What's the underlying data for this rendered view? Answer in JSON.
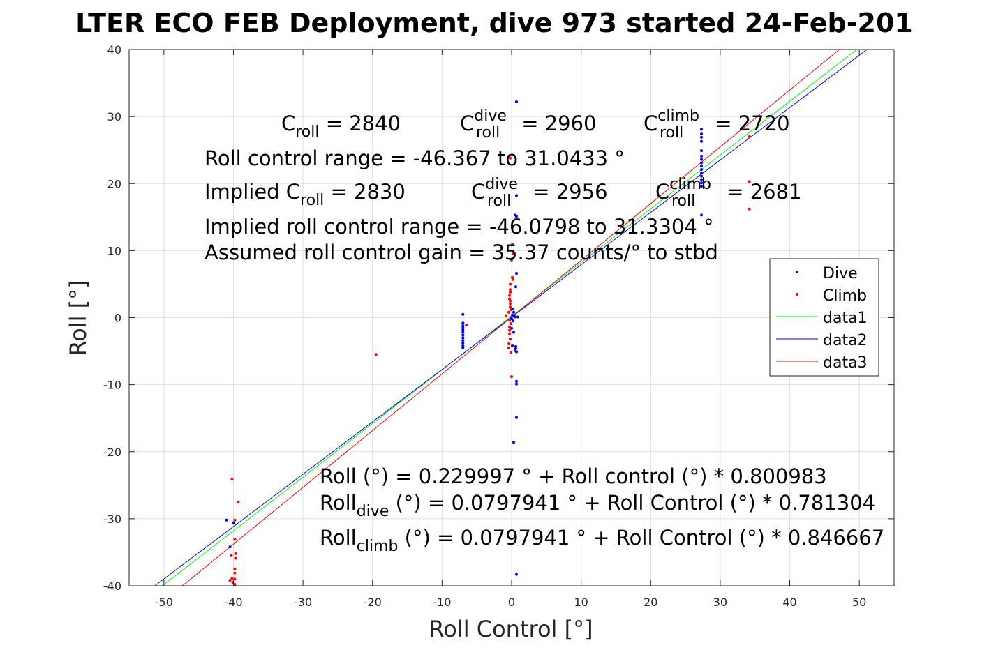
{
  "chart_data": {
    "type": "scatter",
    "title": "LTER ECO FEB Deployment, dive 973 started 24-Feb-201",
    "xlabel": "Roll Control [°]",
    "ylabel": "Roll [°]",
    "xlim": [
      -55,
      55
    ],
    "ylim": [
      -40,
      40
    ],
    "xticks": [
      -50,
      -40,
      -30,
      -20,
      -10,
      0,
      10,
      20,
      30,
      40,
      50
    ],
    "yticks": [
      -40,
      -30,
      -20,
      -10,
      0,
      10,
      20,
      30,
      40
    ],
    "grid": true,
    "legend_position": "right",
    "series": [
      {
        "name": "Dive",
        "kind": "points",
        "color": "#0000ff",
        "points": [
          [
            0.7,
            32.2
          ],
          [
            0.7,
            18.2
          ],
          [
            0.5,
            15.3
          ],
          [
            0.7,
            15.1
          ],
          [
            0.7,
            6.6
          ],
          [
            0.6,
            4.6
          ],
          [
            0.2,
            1.3
          ],
          [
            0.3,
            0.8
          ],
          [
            0.1,
            0.4
          ],
          [
            0.4,
            0.2
          ],
          [
            0.0,
            -0.2
          ],
          [
            0.2,
            -0.5
          ],
          [
            -0.1,
            0.0
          ],
          [
            0.5,
            0.1
          ],
          [
            0.9,
            0.1
          ],
          [
            0.0,
            -1.6
          ],
          [
            0.3,
            -2.2
          ],
          [
            0.1,
            -4.2
          ],
          [
            0.6,
            -4.3
          ],
          [
            0.6,
            -4.6
          ],
          [
            0.5,
            -4.9
          ],
          [
            0.7,
            -5.1
          ],
          [
            0.7,
            -9.5
          ],
          [
            0.7,
            -9.9
          ],
          [
            0.7,
            -14.9
          ],
          [
            0.3,
            -18.6
          ],
          [
            0.7,
            -38.3
          ],
          [
            -7.0,
            0.5
          ],
          [
            -7.0,
            -0.8
          ],
          [
            -7.0,
            -1.2
          ],
          [
            -7.0,
            -1.5
          ],
          [
            -7.0,
            -1.8
          ],
          [
            -7.0,
            -2.2
          ],
          [
            -7.0,
            -2.6
          ],
          [
            -7.0,
            -3.0
          ],
          [
            -7.0,
            -3.4
          ],
          [
            -7.0,
            -3.8
          ],
          [
            -7.0,
            -4.2
          ],
          [
            -7.0,
            -4.5
          ],
          [
            27.3,
            28.1
          ],
          [
            27.3,
            27.4
          ],
          [
            27.3,
            26.9
          ],
          [
            27.3,
            26.3
          ],
          [
            27.3,
            24.9
          ],
          [
            27.3,
            24.1
          ],
          [
            27.3,
            23.6
          ],
          [
            27.3,
            23.1
          ],
          [
            27.3,
            22.6
          ],
          [
            27.3,
            22.1
          ],
          [
            27.3,
            21.6
          ],
          [
            27.3,
            21.1
          ],
          [
            27.3,
            20.6
          ],
          [
            27.3,
            20.1
          ],
          [
            27.3,
            19.6
          ],
          [
            27.3,
            15.3
          ],
          [
            -41.0,
            -30.2
          ],
          [
            -40.5,
            -34.2
          ],
          [
            -40.0,
            -30.6
          ]
        ]
      },
      {
        "name": "Climb",
        "kind": "points",
        "color": "#ff0000",
        "points": [
          [
            -0.2,
            23.8
          ],
          [
            0.1,
            10.9
          ],
          [
            0.2,
            9.5
          ],
          [
            0.0,
            8.6
          ],
          [
            0.1,
            6.0
          ],
          [
            0.2,
            5.7
          ],
          [
            -0.2,
            5.0
          ],
          [
            -0.2,
            4.2
          ],
          [
            -0.2,
            3.8
          ],
          [
            -0.3,
            3.3
          ],
          [
            -0.3,
            2.8
          ],
          [
            -0.2,
            2.5
          ],
          [
            -0.2,
            2.1
          ],
          [
            -0.2,
            1.6
          ],
          [
            -0.1,
            1.2
          ],
          [
            -0.4,
            0.8
          ],
          [
            -0.8,
            0.3
          ],
          [
            -0.3,
            -0.4
          ],
          [
            -0.1,
            -0.9
          ],
          [
            -0.3,
            -1.4
          ],
          [
            -0.3,
            -1.9
          ],
          [
            -0.3,
            -2.4
          ],
          [
            -0.2,
            -3.2
          ],
          [
            -0.4,
            -3.9
          ],
          [
            -0.4,
            -4.5
          ],
          [
            -0.1,
            -5.2
          ],
          [
            0.0,
            -8.8
          ],
          [
            -6.5,
            -1.1
          ],
          [
            -19.5,
            -5.5
          ],
          [
            34.2,
            27.0
          ],
          [
            34.2,
            20.3
          ],
          [
            34.2,
            16.2
          ],
          [
            -40.2,
            -24.1
          ],
          [
            -39.3,
            -27.5
          ],
          [
            -39.8,
            -30.2
          ],
          [
            -39.8,
            -33.1
          ],
          [
            -39.7,
            -35.2
          ],
          [
            -40.3,
            -35.5
          ],
          [
            -39.7,
            -35.9
          ],
          [
            -39.8,
            -37.5
          ],
          [
            -39.8,
            -38.1
          ],
          [
            -40.2,
            -38.9
          ],
          [
            -39.8,
            -39.0
          ],
          [
            -40.5,
            -39.2
          ],
          [
            -40.1,
            -39.5
          ],
          [
            -39.8,
            -39.8
          ]
        ]
      },
      {
        "name": "data1",
        "kind": "line",
        "color": "#00ff00",
        "intercept": 0.229997,
        "slope": 0.800983
      },
      {
        "name": "data2",
        "kind": "line",
        "color": "#0000ff",
        "intercept": 0.0797941,
        "slope": 0.781304
      },
      {
        "name": "data3",
        "kind": "line",
        "color": "#ff0000",
        "intercept": 0.0797941,
        "slope": 0.846667
      }
    ],
    "annotations": {
      "c_roll": {
        "base": "C",
        "sub": "roll",
        "value": " = 2840"
      },
      "c_roll_dive": {
        "base": "C",
        "sup": "dive",
        "sub": "roll",
        "value": " = 2960"
      },
      "c_roll_climb": {
        "base": "C",
        "sup": "climb",
        "sub": "roll",
        "value": " = 2720"
      },
      "roll_control_range": "Roll control range = -46.367 to 31.0433 °",
      "implied_c_roll": {
        "base": "Implied C",
        "sub": "roll",
        "value": " = 2830"
      },
      "implied_c_roll_dive": {
        "base": "C",
        "sup": "dive",
        "sub": "roll",
        "value": " = 2956"
      },
      "implied_c_roll_climb": {
        "base": "C",
        "sup": "climb",
        "sub": "roll",
        "value": " = 2681"
      },
      "implied_roll_control_range": "Implied roll control range = -46.0798 to 31.3304 °",
      "assumed_gain": "Assumed roll control gain = 35.37 counts/° to stbd",
      "fit_all": "Roll (°) = 0.229997 ° + Roll control (°) * 0.800983",
      "fit_dive": {
        "base": "Roll",
        "sub": "dive",
        "value": " (°) = 0.0797941 ° + Roll Control (°) * 0.781304"
      },
      "fit_climb": {
        "base": "Roll",
        "sub": "climb",
        "value": " (°) = 0.0797941 ° + Roll Control (°) * 0.846667"
      }
    }
  }
}
